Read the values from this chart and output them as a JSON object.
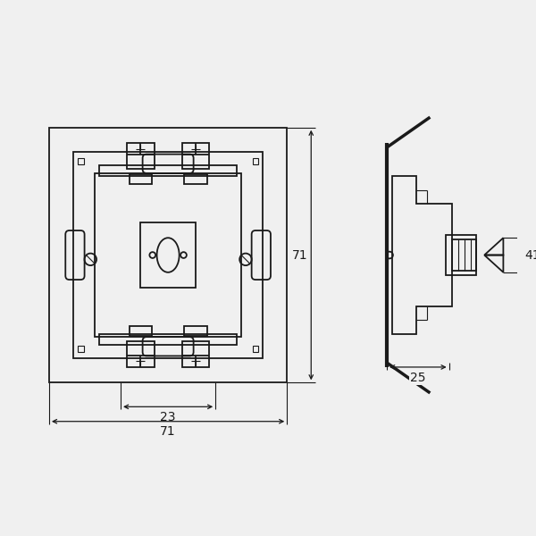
{
  "bg_color": "#f0f0f0",
  "line_color": "#1a1a1a",
  "lw": 1.3,
  "lw_thick": 2.5,
  "lw_thin": 0.8,
  "dim_fontsize": 10,
  "fig_width": 6.0,
  "fig_height": 6.0
}
